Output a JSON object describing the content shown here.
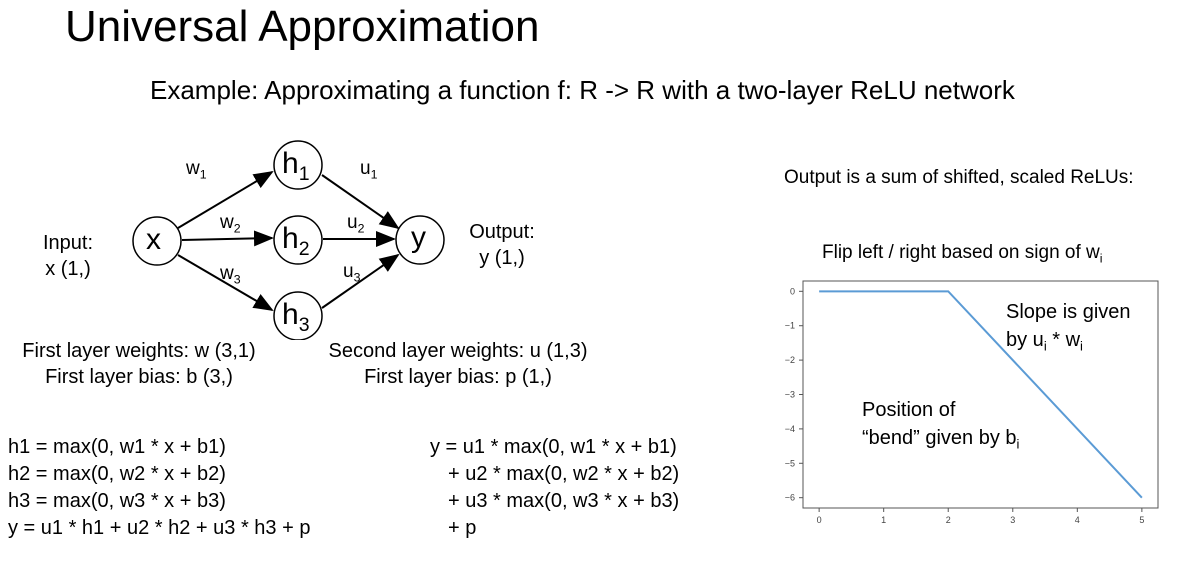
{
  "title": "Universal Approximation",
  "subtitle": "Example: Approximating a function f: R -> R with a two-layer ReLU network",
  "network": {
    "input_label": [
      "Input:",
      "x (1,)"
    ],
    "output_label": [
      "Output:",
      "y (1,)"
    ],
    "nodes": {
      "x": {
        "main": "x",
        "sub": ""
      },
      "h1": {
        "main": "h",
        "sub": "1"
      },
      "h2": {
        "main": "h",
        "sub": "2"
      },
      "h3": {
        "main": "h",
        "sub": "3"
      },
      "y": {
        "main": "y",
        "sub": ""
      }
    },
    "edges": {
      "w1": {
        "main": "w",
        "sub": "1"
      },
      "w2": {
        "main": "w",
        "sub": "2"
      },
      "w3": {
        "main": "w",
        "sub": "3"
      },
      "u1": {
        "main": "u",
        "sub": "1"
      },
      "u2": {
        "main": "u",
        "sub": "2"
      },
      "u3": {
        "main": "u",
        "sub": "3"
      }
    },
    "first_layer": [
      "First layer weights: w (3,1)",
      "First layer bias: b (3,)"
    ],
    "second_layer": [
      "Second layer weights: u (1,3)",
      "First layer bias: p (1,)"
    ]
  },
  "equations_left": [
    "h1 = max(0, w1 * x + b1)",
    "h2 = max(0, w2 * x + b2)",
    "h3 = max(0, w3 * x + b3)",
    "y = u1 * h1 + u2 * h2 + u3 * h3 + p"
  ],
  "equations_right": [
    "y = u1 * max(0, w1 * x + b1)",
    "+ u2 * max(0, w2 * x + b2)",
    "+ u3 * max(0, w3 * x + b3)",
    "+ p"
  ],
  "right_panel": {
    "heading": "Output is a sum of shifted, scaled ReLUs:",
    "flip_note": {
      "main": "Flip left / right based on sign of w",
      "sub": "i"
    },
    "slope_note": {
      "line1": "Slope is given",
      "line2_a": "by u",
      "sub1": "i",
      "line2_b": " * w",
      "sub2": "i"
    },
    "bend_note": {
      "line1": "Position of",
      "line2": "“bend” given by b",
      "sub": "i"
    }
  },
  "chart_data": {
    "type": "line",
    "x": [
      0,
      2,
      5
    ],
    "y": [
      0,
      0,
      -6
    ],
    "xlim": [
      -0.25,
      5.25
    ],
    "ylim": [
      -6.3,
      0.3
    ],
    "xticks": [
      "0",
      "1",
      "2",
      "3",
      "4",
      "5"
    ],
    "yticks": [
      "0",
      "−1",
      "−2",
      "−3",
      "−4",
      "−5",
      "−6"
    ],
    "grid": false,
    "line_color": "#5b9bd5"
  }
}
